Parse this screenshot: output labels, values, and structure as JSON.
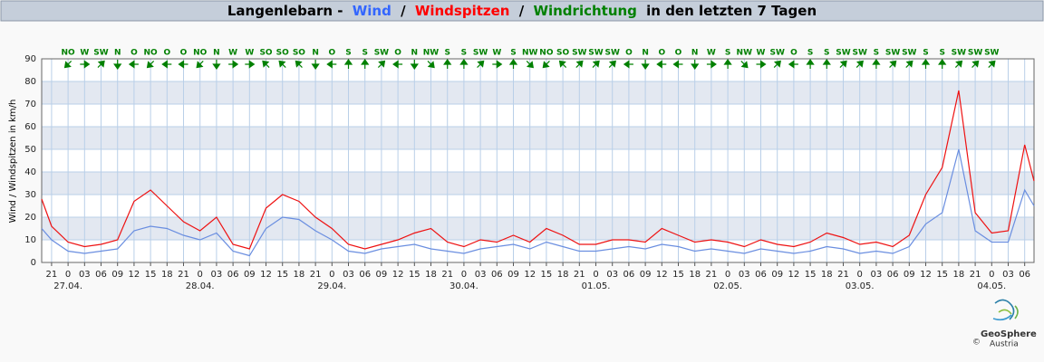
{
  "chart_data": {
    "type": "line",
    "title_parts": [
      "Langenlebarn -",
      "/",
      "/",
      "in den letzten 7 Tagen"
    ],
    "y_label": "Wind / Windspitzen in km/h",
    "x": [
      -4.8,
      -3,
      0,
      3,
      6,
      9,
      12,
      15,
      18,
      21,
      24,
      27,
      30,
      33,
      36,
      39,
      42,
      45,
      48,
      51,
      54,
      57,
      60,
      63,
      66,
      69,
      72,
      75,
      78,
      81,
      84,
      87,
      90,
      93,
      96,
      99,
      102,
      105,
      108,
      111,
      114,
      117,
      120,
      123,
      126,
      129,
      132,
      135,
      138,
      141,
      144,
      147,
      150,
      153,
      156,
      159,
      162,
      165,
      168,
      171,
      174,
      175.7
    ],
    "series": [
      {
        "name": "Wind",
        "color": "#3366ff",
        "line_color": "#6a8ee0",
        "values": [
          15,
          10,
          5,
          4,
          5,
          6,
          14,
          16,
          15,
          12,
          10,
          13,
          5,
          3,
          15,
          20,
          19,
          14,
          10,
          5,
          4,
          6,
          7,
          8,
          6,
          5,
          4,
          6,
          7,
          8,
          6,
          9,
          7,
          5,
          5,
          6,
          7,
          6,
          8,
          7,
          5,
          6,
          5,
          4,
          6,
          5,
          4,
          5,
          7,
          6,
          4,
          5,
          4,
          7,
          17,
          22,
          50,
          14,
          9,
          9,
          32,
          25
        ]
      },
      {
        "name": "Windspitzen",
        "color": "#ff0000",
        "line_color": "#ee1111",
        "values": [
          28,
          16,
          9,
          7,
          8,
          10,
          27,
          32,
          25,
          18,
          14,
          20,
          8,
          6,
          24,
          30,
          27,
          20,
          15,
          8,
          6,
          8,
          10,
          13,
          15,
          9,
          7,
          10,
          9,
          12,
          9,
          15,
          12,
          8,
          8,
          10,
          10,
          9,
          15,
          12,
          9,
          10,
          9,
          7,
          10,
          8,
          7,
          9,
          13,
          11,
          8,
          9,
          7,
          12,
          30,
          42,
          76,
          22,
          13,
          14,
          52,
          36
        ]
      }
    ],
    "wind_direction": {
      "name": "Windrichtung",
      "color": "#008000",
      "x": [
        0,
        3,
        6,
        9,
        12,
        15,
        18,
        21,
        24,
        27,
        30,
        33,
        36,
        39,
        42,
        45,
        48,
        51,
        54,
        57,
        60,
        63,
        66,
        69,
        72,
        75,
        78,
        81,
        84,
        87,
        90,
        93,
        96,
        99,
        102,
        105,
        108,
        111,
        114,
        117,
        120,
        123,
        126,
        129,
        132,
        135,
        138,
        141,
        144,
        147,
        150,
        153,
        156,
        159,
        162,
        165,
        168
      ],
      "labels": [
        "NO",
        "W",
        "SW",
        "N",
        "O",
        "NO",
        "O",
        "O",
        "NO",
        "N",
        "W",
        "W",
        "SO",
        "SO",
        "SO",
        "N",
        "O",
        "S",
        "S",
        "SW",
        "O",
        "N",
        "NW",
        "S",
        "S",
        "SW",
        "W",
        "S",
        "NW",
        "NO",
        "SO",
        "SW",
        "SW",
        "SW",
        "O",
        "N",
        "O",
        "O",
        "N",
        "W",
        "S",
        "NW",
        "W",
        "SW",
        "O",
        "S",
        "S",
        "SW",
        "SW",
        "S",
        "SW",
        "SW",
        "S",
        "S",
        "SW",
        "SW",
        "SW"
      ]
    },
    "xlim": [
      -4.8,
      175.7
    ],
    "ylim": [
      0,
      90
    ],
    "yticks": [
      0,
      10,
      20,
      30,
      40,
      50,
      60,
      70,
      80,
      90
    ],
    "xticks": [
      {
        "value": -3,
        "label": "21"
      },
      {
        "value": 0,
        "label": "0"
      },
      {
        "value": 3,
        "label": "03"
      },
      {
        "value": 6,
        "label": "06"
      },
      {
        "value": 9,
        "label": "09"
      },
      {
        "value": 12,
        "label": "12"
      },
      {
        "value": 15,
        "label": "15"
      },
      {
        "value": 18,
        "label": "18"
      },
      {
        "value": 21,
        "label": "21"
      },
      {
        "value": 24,
        "label": "0"
      },
      {
        "value": 27,
        "label": "03"
      },
      {
        "value": 30,
        "label": "06"
      },
      {
        "value": 33,
        "label": "09"
      },
      {
        "value": 36,
        "label": "12"
      },
      {
        "value": 39,
        "label": "15"
      },
      {
        "value": 42,
        "label": "18"
      },
      {
        "value": 45,
        "label": "21"
      },
      {
        "value": 48,
        "label": "0"
      },
      {
        "value": 51,
        "label": "03"
      },
      {
        "value": 54,
        "label": "06"
      },
      {
        "value": 57,
        "label": "09"
      },
      {
        "value": 60,
        "label": "12"
      },
      {
        "value": 63,
        "label": "15"
      },
      {
        "value": 66,
        "label": "18"
      },
      {
        "value": 69,
        "label": "21"
      },
      {
        "value": 72,
        "label": "0"
      },
      {
        "value": 75,
        "label": "03"
      },
      {
        "value": 78,
        "label": "06"
      },
      {
        "value": 81,
        "label": "09"
      },
      {
        "value": 84,
        "label": "12"
      },
      {
        "value": 87,
        "label": "15"
      },
      {
        "value": 90,
        "label": "18"
      },
      {
        "value": 93,
        "label": "21"
      },
      {
        "value": 96,
        "label": "0"
      },
      {
        "value": 99,
        "label": "03"
      },
      {
        "value": 102,
        "label": "06"
      },
      {
        "value": 105,
        "label": "09"
      },
      {
        "value": 108,
        "label": "12"
      },
      {
        "value": 111,
        "label": "15"
      },
      {
        "value": 114,
        "label": "18"
      },
      {
        "value": 117,
        "label": "21"
      },
      {
        "value": 120,
        "label": "0"
      },
      {
        "value": 123,
        "label": "03"
      },
      {
        "value": 126,
        "label": "06"
      },
      {
        "value": 129,
        "label": "09"
      },
      {
        "value": 132,
        "label": "12"
      },
      {
        "value": 135,
        "label": "15"
      },
      {
        "value": 138,
        "label": "18"
      },
      {
        "value": 141,
        "label": "21"
      },
      {
        "value": 144,
        "label": "0"
      },
      {
        "value": 147,
        "label": "03"
      },
      {
        "value": 150,
        "label": "06"
      },
      {
        "value": 153,
        "label": "09"
      },
      {
        "value": 156,
        "label": "12"
      },
      {
        "value": 159,
        "label": "15"
      },
      {
        "value": 162,
        "label": "18"
      },
      {
        "value": 165,
        "label": "21"
      },
      {
        "value": 168,
        "label": "0"
      },
      {
        "value": 171,
        "label": "03"
      },
      {
        "value": 174,
        "label": "06"
      }
    ],
    "day_labels": [
      {
        "value": 0,
        "label": "27.04."
      },
      {
        "value": 24,
        "label": "28.04."
      },
      {
        "value": 48,
        "label": "29.04."
      },
      {
        "value": 72,
        "label": "30.04."
      },
      {
        "value": 96,
        "label": "01.05."
      },
      {
        "value": 120,
        "label": "02.05."
      },
      {
        "value": 144,
        "label": "03.05."
      },
      {
        "value": 168,
        "label": "04.05."
      }
    ],
    "bands": [
      [
        10,
        20
      ],
      [
        30,
        40
      ],
      [
        50,
        60
      ],
      [
        70,
        80
      ]
    ],
    "grid": true
  },
  "logo": {
    "copyright": "©",
    "name": "GeoSphere",
    "sub": "Austria"
  }
}
